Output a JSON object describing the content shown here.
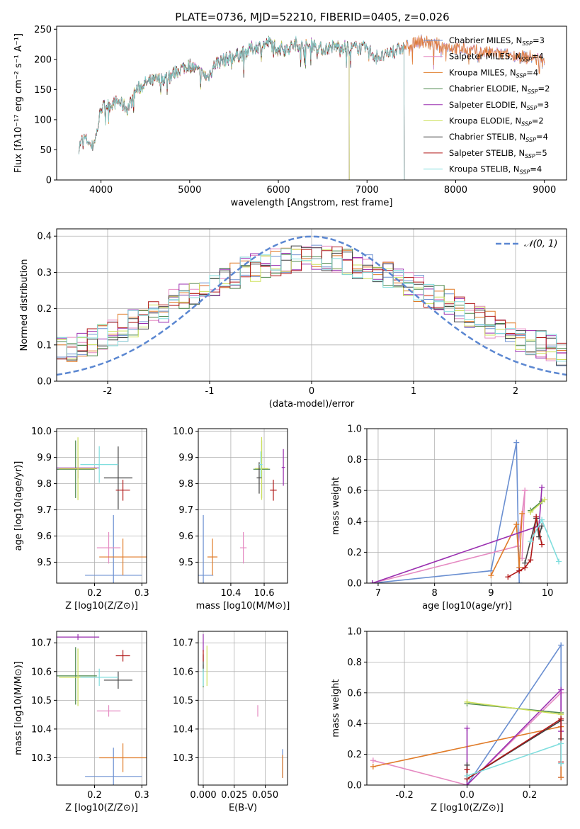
{
  "title": "PLATE=0736, MJD=52210, FIBERID=0405, z=0.026",
  "colors": {
    "Chabrier MILES": "#6a8fd1",
    "Salpeter MILES": "#e58ac2",
    "Kroupa MILES": "#e07b28",
    "Chabrier ELODIE": "#4f8a4f",
    "Salpeter ELODIE": "#9a2fb0",
    "Kroupa ELODIE": "#cde05a",
    "Chabrier STELIB": "#404040",
    "Salpeter STELIB": "#b01818",
    "Kroupa STELIB": "#80dede"
  },
  "chart_data": [
    {
      "type": "line",
      "xlabel": "wavelength [Angstrom, rest frame]",
      "ylabel": "Flux [fλ10⁻¹⁷ erg cm⁻² s⁻¹ A⁻¹]",
      "xlim": [
        3500,
        9250
      ],
      "ylim": [
        0,
        255
      ],
      "xticks": [
        4000,
        5000,
        6000,
        7000,
        8000,
        9000
      ],
      "yticks": [
        0,
        50,
        100,
        150,
        200,
        250
      ],
      "legend_position": "right",
      "continuum": {
        "x": [
          3750,
          3800,
          3850,
          3900,
          3950,
          4000,
          4100,
          4200,
          4300,
          4400,
          4500,
          4600,
          4700,
          4800,
          4900,
          5000,
          5100,
          5200,
          5300,
          5400,
          5500,
          5600,
          5700,
          5800,
          5900,
          6000,
          6100,
          6200,
          6300,
          6400,
          6500,
          6600,
          6700,
          6800,
          6900,
          7000,
          7100,
          7200,
          7300,
          7400,
          7500,
          7600,
          7700,
          7800,
          7900,
          8000,
          8200,
          8400,
          8600,
          8800,
          9000
        ],
        "y": [
          55,
          70,
          65,
          55,
          75,
          120,
          125,
          130,
          118,
          150,
          160,
          165,
          168,
          175,
          185,
          190,
          180,
          170,
          195,
          200,
          205,
          210,
          218,
          222,
          228,
          220,
          218,
          226,
          220,
          225,
          216,
          220,
          222,
          218,
          220,
          218,
          205,
          205,
          215,
          218,
          225,
          232,
          226,
          224,
          222,
          218,
          214,
          210,
          207,
          204,
          200
        ]
      },
      "series": [
        {
          "name": "Chabrier MILES, N_SSP=3",
          "x": [
            3750,
            9000
          ]
        },
        {
          "name": "Salpeter MILES, N_SSP=4",
          "x": [
            3750,
            9000
          ]
        },
        {
          "name": "Kroupa MILES, N_SSP=4",
          "x": [
            3750,
            9000
          ]
        },
        {
          "name": "Chabrier ELODIE, N_SSP=2",
          "x": [
            3900,
            6800
          ]
        },
        {
          "name": "Salpeter ELODIE, N_SSP=3",
          "x": [
            3900,
            6800
          ]
        },
        {
          "name": "Kroupa ELODIE, N_SSP=2",
          "x": [
            3900,
            6800
          ]
        },
        {
          "name": "Chabrier STELIB, N_SSP=4",
          "x": [
            3750,
            7420
          ]
        },
        {
          "name": "Salpeter STELIB, N_SSP=5",
          "x": [
            3750,
            7420
          ]
        },
        {
          "name": "Kroupa STELIB, N_SSP=4",
          "x": [
            3750,
            7420
          ]
        }
      ]
    },
    {
      "type": "line",
      "xlabel": "(data-model)/error",
      "ylabel": "Normed distribution",
      "xlim": [
        -2.5,
        2.5
      ],
      "ylim": [
        0,
        0.42
      ],
      "xticks": [
        -2,
        -1,
        0,
        1,
        2
      ],
      "yticks": [
        0.0,
        0.1,
        0.2,
        0.3,
        0.4
      ],
      "grid": true,
      "legend_position": "top-right",
      "gaussian_label": "𝒩(0, 1)",
      "bins": [
        -2.5,
        2.5,
        50
      ]
    },
    {
      "type": "scatter",
      "xlabel": "Z [log10(Z/Z⊙)]",
      "ylabel": "age  [log10(age/yr)]",
      "xlim": [
        0.12,
        0.31
      ],
      "ylim": [
        9.42,
        10.01
      ],
      "xticks": [
        0.2,
        0.3
      ],
      "yticks": [
        9.5,
        9.6,
        9.7,
        9.8,
        9.9,
        10.0
      ],
      "points": [
        {
          "x": 0.24,
          "y": 9.45,
          "xerr": 0.06,
          "yerr": 0.23,
          "c": "Chabrier MILES"
        },
        {
          "x": 0.23,
          "y": 9.555,
          "xerr": 0.025,
          "yerr": 0.06,
          "c": "Salpeter MILES"
        },
        {
          "x": 0.26,
          "y": 9.52,
          "xerr": 0.05,
          "yerr": 0.07,
          "c": "Kroupa MILES"
        },
        {
          "x": 0.16,
          "y": 9.855,
          "xerr": 0.04,
          "yerr": 0.11,
          "c": "Chabrier ELODIE"
        },
        {
          "x": 0.165,
          "y": 9.86,
          "xerr": 0.045,
          "yerr": 0.04,
          "c": "Salpeter ELODIE"
        },
        {
          "x": 0.165,
          "y": 9.857,
          "xerr": 0.04,
          "yerr": 0.12,
          "c": "Kroupa ELODIE"
        },
        {
          "x": 0.25,
          "y": 9.822,
          "xerr": 0.03,
          "yerr": 0.12,
          "c": "Chabrier STELIB"
        },
        {
          "x": 0.26,
          "y": 9.775,
          "xerr": 0.015,
          "yerr": 0.04,
          "c": "Salpeter STELIB"
        },
        {
          "x": 0.21,
          "y": 9.873,
          "xerr": 0.04,
          "yerr": 0.07,
          "c": "Kroupa STELIB"
        }
      ]
    },
    {
      "type": "scatter",
      "xlabel": "mass [log10(M/M⊙)]",
      "ylabel": "",
      "xlim": [
        10.205,
        10.74
      ],
      "ylim": [
        9.42,
        10.01
      ],
      "xticks": [
        10.4,
        10.6
      ],
      "yticks": [
        9.5,
        9.6,
        9.7,
        9.8,
        9.9,
        10.0
      ],
      "points": [
        {
          "x": 10.235,
          "y": 9.45,
          "xerr": 0.06,
          "yerr": 0.23,
          "c": "Chabrier MILES"
        },
        {
          "x": 10.475,
          "y": 9.555,
          "xerr": 0.02,
          "yerr": 0.06,
          "c": "Salpeter MILES"
        },
        {
          "x": 10.29,
          "y": 9.52,
          "xerr": 0.03,
          "yerr": 0.07,
          "c": "Kroupa MILES"
        },
        {
          "x": 10.585,
          "y": 9.855,
          "xerr": 0.05,
          "yerr": 0.11,
          "c": "Chabrier ELODIE"
        },
        {
          "x": 10.715,
          "y": 9.862,
          "xerr": 0.01,
          "yerr": 0.07,
          "c": "Salpeter ELODIE"
        },
        {
          "x": 10.585,
          "y": 9.858,
          "xerr": 0.04,
          "yerr": 0.12,
          "c": "Kroupa ELODIE"
        },
        {
          "x": 10.57,
          "y": 9.822,
          "xerr": 0.015,
          "yerr": 0.06,
          "c": "Chabrier STELIB"
        },
        {
          "x": 10.655,
          "y": 9.775,
          "xerr": 0.02,
          "yerr": 0.04,
          "c": "Salpeter STELIB"
        },
        {
          "x": 10.58,
          "y": 9.873,
          "xerr": 0.01,
          "yerr": 0.05,
          "c": "Kroupa STELIB"
        }
      ]
    },
    {
      "type": "line",
      "xlabel": "age  [log10(age/yr)]",
      "ylabel": "mass weight",
      "xlim": [
        6.8,
        10.35
      ],
      "ylim": [
        0,
        1.0
      ],
      "xticks": [
        7,
        8,
        9,
        10
      ],
      "yticks": [
        0.0,
        0.2,
        0.4,
        0.6,
        0.8,
        1.0
      ],
      "grid": true,
      "series": [
        {
          "c": "Chabrier MILES",
          "x": [
            6.9,
            9.0,
            9.45,
            9.5
          ],
          "y": [
            0.0,
            0.08,
            0.91,
            0.0
          ]
        },
        {
          "c": "Salpeter MILES",
          "x": [
            6.9,
            9.48,
            9.6,
            9.55
          ],
          "y": [
            0.0,
            0.24,
            0.6,
            0.16
          ]
        },
        {
          "c": "Kroupa MILES",
          "x": [
            9.0,
            9.45,
            9.5,
            9.55
          ],
          "y": [
            0.05,
            0.38,
            0.1,
            0.45
          ]
        },
        {
          "c": "Chabrier ELODIE",
          "x": [
            9.7,
            9.9
          ],
          "y": [
            0.47,
            0.53
          ]
        },
        {
          "c": "Salpeter ELODIE",
          "x": [
            6.9,
            9.85,
            9.9
          ],
          "y": [
            0.0,
            0.37,
            0.62
          ]
        },
        {
          "c": "Kroupa ELODIE",
          "x": [
            9.7,
            9.95
          ],
          "y": [
            0.46,
            0.54
          ]
        },
        {
          "c": "Chabrier STELIB",
          "x": [
            9.6,
            9.8,
            9.85,
            9.9
          ],
          "y": [
            0.13,
            0.42,
            0.3,
            0.37
          ]
        },
        {
          "c": "Salpeter STELIB",
          "x": [
            9.3,
            9.5,
            9.6,
            9.7,
            9.8,
            9.9
          ],
          "y": [
            0.04,
            0.08,
            0.1,
            0.15,
            0.43,
            0.25
          ]
        },
        {
          "c": "Kroupa STELIB",
          "x": [
            9.7,
            9.9,
            10.2
          ],
          "y": [
            0.27,
            0.41,
            0.14
          ]
        }
      ]
    },
    {
      "type": "scatter",
      "xlabel": "Z [log10(Z/Z⊙)]",
      "ylabel": "mass [log10(M/M⊙)]",
      "xlim": [
        0.12,
        0.31
      ],
      "ylim": [
        10.205,
        10.74
      ],
      "xticks": [
        0.2,
        0.3
      ],
      "yticks": [
        10.3,
        10.4,
        10.5,
        10.6,
        10.7
      ],
      "points": [
        {
          "x": 0.24,
          "y": 10.235,
          "xerr": 0.06,
          "yerr": 0.1,
          "c": "Chabrier MILES"
        },
        {
          "x": 0.23,
          "y": 10.463,
          "xerr": 0.025,
          "yerr": 0.02,
          "c": "Salpeter MILES"
        },
        {
          "x": 0.26,
          "y": 10.3,
          "xerr": 0.05,
          "yerr": 0.05,
          "c": "Kroupa MILES"
        },
        {
          "x": 0.16,
          "y": 10.585,
          "xerr": 0.045,
          "yerr": 0.1,
          "c": "Chabrier ELODIE"
        },
        {
          "x": 0.165,
          "y": 10.72,
          "xerr": 0.045,
          "yerr": 0.01,
          "c": "Salpeter ELODIE"
        },
        {
          "x": 0.165,
          "y": 10.58,
          "xerr": 0.04,
          "yerr": 0.1,
          "c": "Kroupa ELODIE"
        },
        {
          "x": 0.25,
          "y": 10.57,
          "xerr": 0.03,
          "yerr": 0.03,
          "c": "Chabrier STELIB"
        },
        {
          "x": 0.26,
          "y": 10.655,
          "xerr": 0.015,
          "yerr": 0.02,
          "c": "Salpeter STELIB"
        },
        {
          "x": 0.21,
          "y": 10.58,
          "xerr": 0.04,
          "yerr": 0.03,
          "c": "Kroupa STELIB"
        }
      ]
    },
    {
      "type": "scatter",
      "xlabel": "E(B-V)",
      "ylabel": "",
      "xlim": [
        -0.004,
        0.068
      ],
      "ylim": [
        10.205,
        10.74
      ],
      "xticks": [
        0.0,
        0.025,
        0.05
      ],
      "xticklabels": [
        "0.000",
        "0.025",
        "0.050"
      ],
      "yticks": [
        10.3,
        10.4,
        10.5,
        10.6,
        10.7
      ],
      "points": [
        {
          "x": 0.064,
          "y": 10.28,
          "xerr": 0,
          "yerr": 0.05,
          "c": "Chabrier MILES"
        },
        {
          "x": 0.044,
          "y": 10.463,
          "xerr": 0,
          "yerr": 0.02,
          "c": "Salpeter MILES"
        },
        {
          "x": 0.064,
          "y": 10.27,
          "xerr": 0,
          "yerr": 0.04,
          "c": "Kroupa MILES"
        },
        {
          "x": 0.0,
          "y": 10.585,
          "xerr": 0,
          "yerr": 0.04,
          "c": "Chabrier ELODIE"
        },
        {
          "x": 0.0,
          "y": 10.7,
          "xerr": 0,
          "yerr": 0.03,
          "c": "Salpeter ELODIE"
        },
        {
          "x": 0.003,
          "y": 10.62,
          "xerr": 0,
          "yerr": 0.07,
          "c": "Kroupa ELODIE"
        },
        {
          "x": 0.0,
          "y": 10.63,
          "xerr": 0,
          "yerr": 0.03,
          "c": "Chabrier STELIB"
        },
        {
          "x": 0.0,
          "y": 10.655,
          "xerr": 0,
          "yerr": 0.02,
          "c": "Salpeter STELIB"
        },
        {
          "x": 0.0,
          "y": 10.58,
          "xerr": 0,
          "yerr": 0.03,
          "c": "Kroupa STELIB"
        }
      ]
    },
    {
      "type": "line",
      "xlabel": "Z [log10(Z/Z⊙)]",
      "ylabel": "mass weight",
      "xlim": [
        -0.32,
        0.32
      ],
      "ylim": [
        0,
        1.0
      ],
      "xticks": [
        -0.2,
        0.0,
        0.2
      ],
      "yticks": [
        0.0,
        0.2,
        0.4,
        0.6,
        0.8,
        1.0
      ],
      "grid": true,
      "series": [
        {
          "c": "Chabrier MILES",
          "x": [
            0.0,
            0.3,
            0.3
          ],
          "y": [
            0.0,
            0.91,
            0.05
          ]
        },
        {
          "c": "Salpeter MILES",
          "x": [
            -0.3,
            0.0,
            0.3,
            0.3
          ],
          "y": [
            0.16,
            0.0,
            0.6,
            0.05
          ]
        },
        {
          "c": "Kroupa MILES",
          "x": [
            -0.3,
            0.3,
            0.3
          ],
          "y": [
            0.12,
            0.38,
            0.05
          ]
        },
        {
          "c": "Chabrier ELODIE",
          "x": [
            0.0,
            0.3
          ],
          "y": [
            0.53,
            0.47
          ]
        },
        {
          "c": "Salpeter ELODIE",
          "x": [
            0.0,
            0.0,
            0.3,
            0.3
          ],
          "y": [
            0.37,
            0.0,
            0.62,
            0.35
          ]
        },
        {
          "c": "Kroupa ELODIE",
          "x": [
            0.0,
            0.3
          ],
          "y": [
            0.54,
            0.46
          ]
        },
        {
          "c": "Chabrier STELIB",
          "x": [
            0.0,
            0.0,
            0.3,
            0.3
          ],
          "y": [
            0.13,
            0.04,
            0.42,
            0.3
          ]
        },
        {
          "c": "Salpeter STELIB",
          "x": [
            0.0,
            0.0,
            0.3,
            0.3
          ],
          "y": [
            0.1,
            0.04,
            0.43,
            0.15
          ]
        },
        {
          "c": "Kroupa STELIB",
          "x": [
            0.0,
            0.3,
            0.3
          ],
          "y": [
            0.06,
            0.27,
            0.14
          ]
        }
      ]
    }
  ]
}
